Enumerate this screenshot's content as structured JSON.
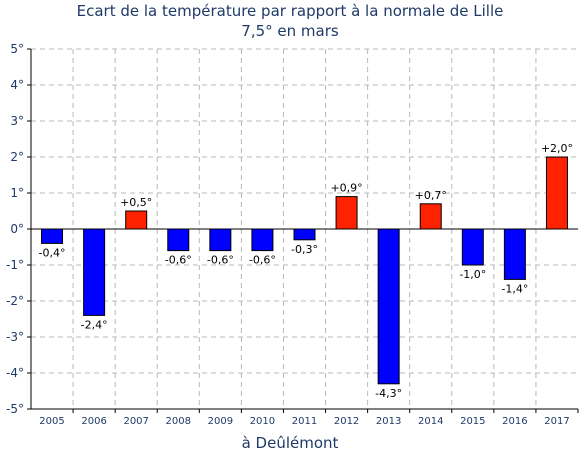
{
  "chart_data": {
    "type": "bar",
    "title_lines": [
      "Ecart de la température par rapport à la normale de Lille",
      "7,5° en mars"
    ],
    "xlabel": "à Deûlémont",
    "ylabel": "",
    "ylim": [
      -5,
      5
    ],
    "yticks": [
      "5°",
      "4°",
      "3°",
      "2°",
      "1°",
      "0°",
      "-1°",
      "-2°",
      "-3°",
      "-4°",
      "-5°"
    ],
    "ytick_values": [
      5,
      4,
      3,
      2,
      1,
      0,
      -1,
      -2,
      -3,
      -4,
      -5
    ],
    "categories": [
      "2005",
      "2006",
      "2007",
      "2008",
      "2009",
      "2010",
      "2011",
      "2012",
      "2013",
      "2014",
      "2015",
      "2016",
      "2017"
    ],
    "values": [
      -0.4,
      -2.4,
      0.5,
      -0.6,
      -0.6,
      -0.6,
      -0.3,
      0.9,
      -4.3,
      0.7,
      -1.0,
      -1.4,
      2.0
    ],
    "labels": [
      "-0,4°",
      "-2,4°",
      "+0,5°",
      "-0,6°",
      "-0,6°",
      "-0,6°",
      "-0,3°",
      "+0,9°",
      "-4,3°",
      "+0,7°",
      "-1,0°",
      "-1,4°",
      "+2,0°"
    ],
    "grid": true,
    "colors": {
      "positive": "#ff2200",
      "negative": "#0000ff",
      "text": "#1f3a68",
      "grid": "#b8b8b8"
    }
  }
}
